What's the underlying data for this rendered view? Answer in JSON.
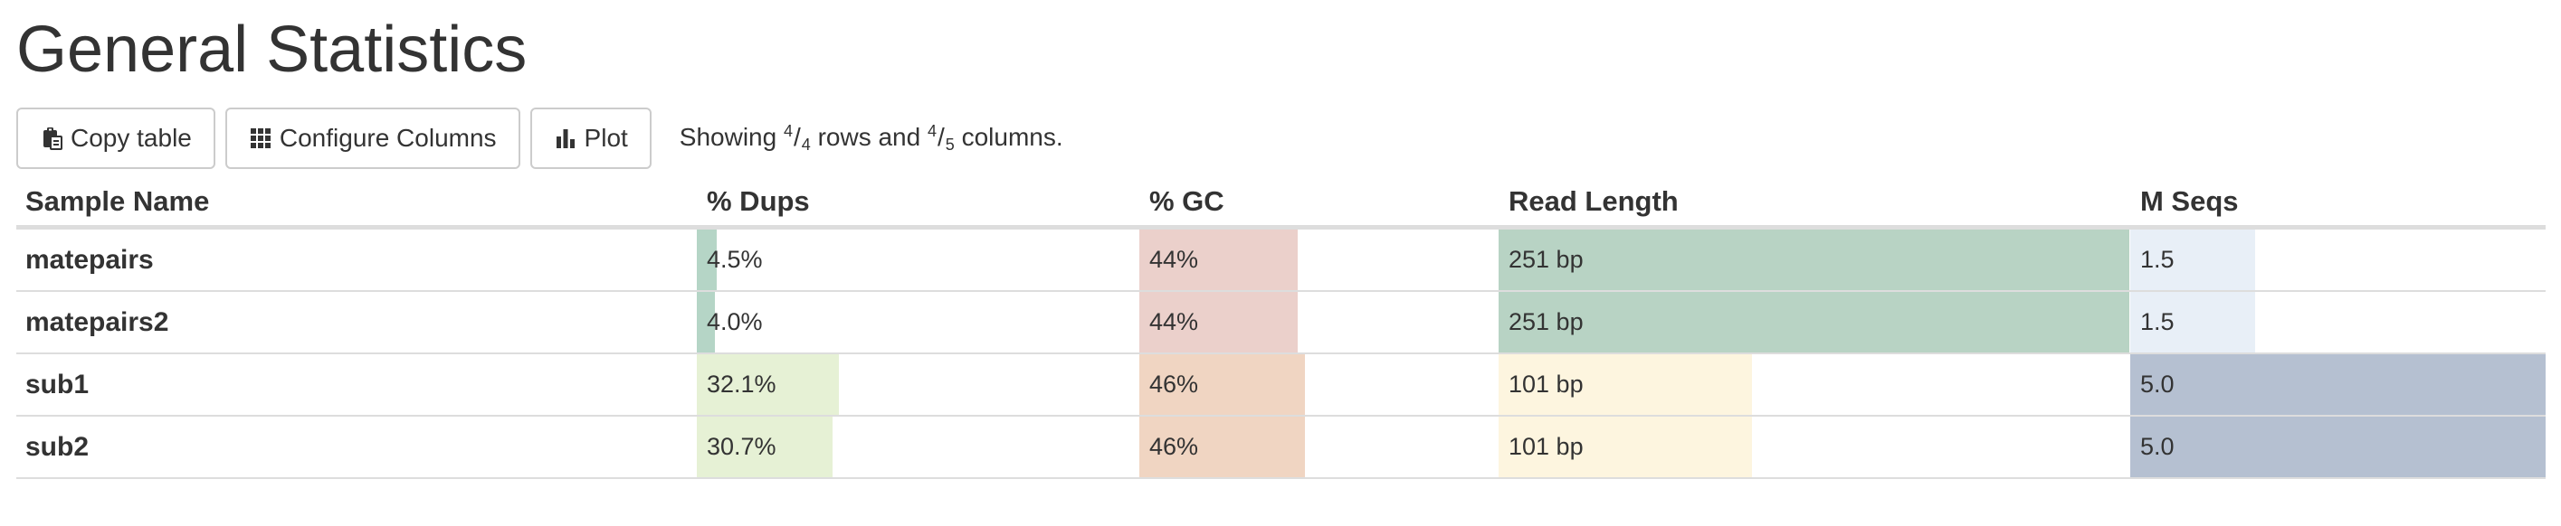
{
  "page": {
    "title": "General Statistics"
  },
  "toolbar": {
    "copy_label": "Copy table",
    "configure_label": "Configure Columns",
    "plot_label": "Plot",
    "showing": {
      "prefix": "Showing",
      "rows_shown": "4",
      "rows_total": "4",
      "rows_word": "rows and",
      "cols_shown": "4",
      "cols_total": "5",
      "cols_word": "columns."
    }
  },
  "table": {
    "headers": [
      "Sample Name",
      "% Dups",
      "% GC",
      "Read Length",
      "M Seqs"
    ],
    "columns": [
      {
        "key": "dups",
        "max": 100,
        "colors": [
          "#b5d5c6",
          "#b5d5c6",
          "#e6f1d5",
          "#e6f1d5"
        ]
      },
      {
        "key": "gc",
        "max": 100,
        "colors": [
          "#ebd0cb",
          "#ebd0cb",
          "#f0d5c2",
          "#f0d5c2"
        ]
      },
      {
        "key": "readlen",
        "max": 251,
        "colors": [
          "#b8d3c4",
          "#b8d3c4",
          "#fdf5df",
          "#fdf5df"
        ]
      },
      {
        "key": "mseqs",
        "max": 5.0,
        "colors": [
          "#e8eff7",
          "#e8eff7",
          "#b5c0d1",
          "#b5c0d1"
        ]
      }
    ],
    "rows": [
      {
        "name": "matepairs",
        "dups": "4.5%",
        "dups_v": 4.5,
        "gc": "44%",
        "gc_v": 44,
        "readlen": "251 bp",
        "readlen_v": 251,
        "mseqs": "1.5",
        "mseqs_v": 1.5
      },
      {
        "name": "matepairs2",
        "dups": "4.0%",
        "dups_v": 4.0,
        "gc": "44%",
        "gc_v": 44,
        "readlen": "251 bp",
        "readlen_v": 251,
        "mseqs": "1.5",
        "mseqs_v": 1.5
      },
      {
        "name": "sub1",
        "dups": "32.1%",
        "dups_v": 32.1,
        "gc": "46%",
        "gc_v": 46,
        "readlen": "101 bp",
        "readlen_v": 101,
        "mseqs": "5.0",
        "mseqs_v": 5.0
      },
      {
        "name": "sub2",
        "dups": "30.7%",
        "dups_v": 30.7,
        "gc": "46%",
        "gc_v": 46,
        "readlen": "101 bp",
        "readlen_v": 101,
        "mseqs": "5.0",
        "mseqs_v": 5.0
      }
    ]
  },
  "icons": {
    "copy": "clipboard-icon",
    "configure": "grid-icon",
    "plot": "bar-chart-icon"
  }
}
